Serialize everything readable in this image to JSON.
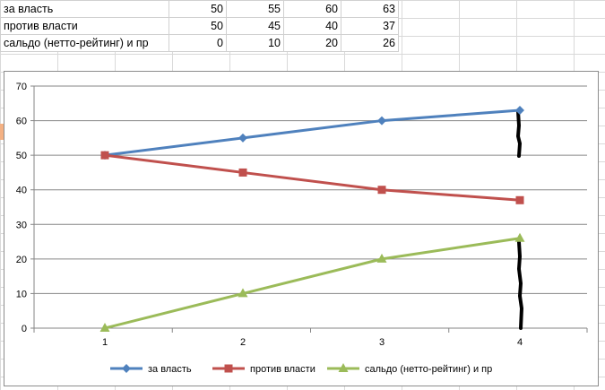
{
  "table": {
    "rows": [
      {
        "label": "за  власть",
        "values": [
          "50",
          "55",
          "60",
          "63"
        ]
      },
      {
        "label": "против власти",
        "values": [
          "50",
          "45",
          "40",
          "37"
        ]
      },
      {
        "label": "сальдо (нетто-рейтинг) и пр",
        "values": [
          "0",
          "10",
          "20",
          "26"
        ]
      }
    ]
  },
  "chart_data": {
    "type": "line",
    "x": [
      1,
      2,
      3,
      4
    ],
    "categories": [
      "1",
      "2",
      "3",
      "4"
    ],
    "ylim": [
      0,
      70
    ],
    "yticks": [
      0,
      10,
      20,
      30,
      40,
      50,
      60,
      70
    ],
    "grid": true,
    "legend": "bottom",
    "series": [
      {
        "name": "за  власть",
        "values": [
          50,
          55,
          60,
          63
        ],
        "color": "#4f81bd",
        "marker": "diamond"
      },
      {
        "name": "против власти",
        "values": [
          50,
          45,
          40,
          37
        ],
        "color": "#c0504d",
        "marker": "square"
      },
      {
        "name": "сальдо (нетто-рейтинг)  и пр",
        "values": [
          0,
          10,
          20,
          26
        ],
        "color": "#9bbb59",
        "marker": "triangle"
      }
    ]
  }
}
